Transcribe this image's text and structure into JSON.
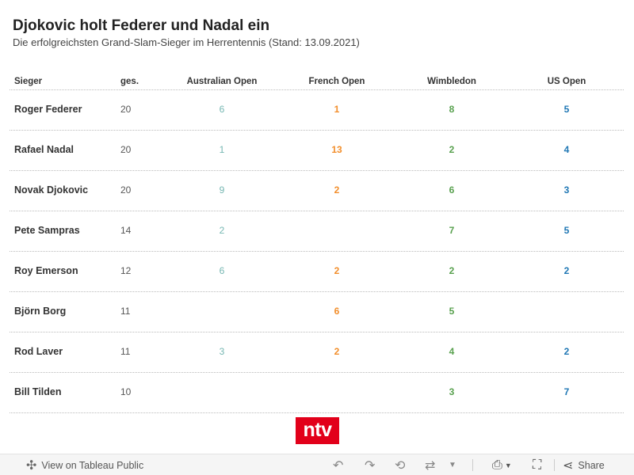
{
  "chart_data": {
    "type": "table",
    "title": "Djokovic holt Federer und Nadal ein",
    "subtitle": "Die erfolgreichsten Grand-Slam-Sieger im Herrentennis (Stand: 13.09.2021)",
    "columns": [
      "Sieger",
      "ges.",
      "Australian Open",
      "French Open",
      "Wimbledon",
      "US Open"
    ],
    "rows": [
      {
        "name": "Roger Federer",
        "total": "20",
        "ao": "6",
        "fo": "1",
        "wb": "8",
        "us": "5"
      },
      {
        "name": "Rafael Nadal",
        "total": "20",
        "ao": "1",
        "fo": "13",
        "wb": "2",
        "us": "4"
      },
      {
        "name": "Novak Djokovic",
        "total": "20",
        "ao": "9",
        "fo": "2",
        "wb": "6",
        "us": "3"
      },
      {
        "name": "Pete Sampras",
        "total": "14",
        "ao": "2",
        "fo": "",
        "wb": "7",
        "us": "5"
      },
      {
        "name": "Roy Emerson",
        "total": "12",
        "ao": "6",
        "fo": "2",
        "wb": "2",
        "us": "2"
      },
      {
        "name": "Björn Borg",
        "total": "11",
        "ao": "",
        "fo": "6",
        "wb": "5",
        "us": ""
      },
      {
        "name": "Rod Laver",
        "total": "11",
        "ao": "3",
        "fo": "2",
        "wb": "4",
        "us": "2"
      },
      {
        "name": "Bill Tilden",
        "total": "10",
        "ao": "",
        "fo": "",
        "wb": "3",
        "us": "7"
      }
    ],
    "column_colors": {
      "ao": "#76b7b2",
      "fo": "#f28e2b",
      "wb": "#59a14f",
      "us": "#1f77b4"
    }
  },
  "logo_text": "ntv",
  "toolbar": {
    "view_label": "View on Tableau Public",
    "share_label": "Share"
  }
}
